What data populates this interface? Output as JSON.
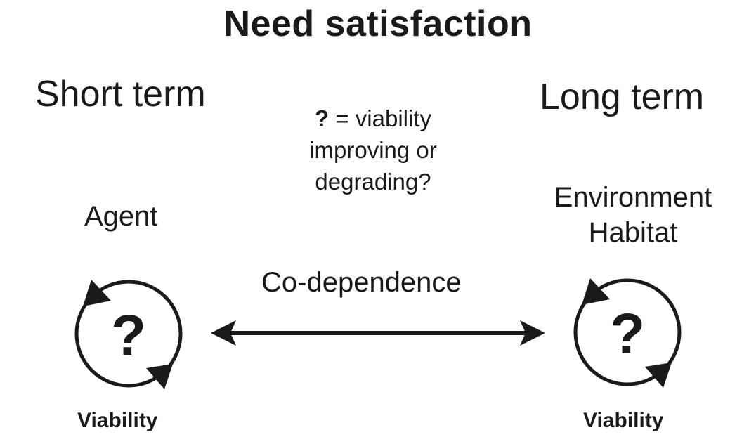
{
  "title": "Need satisfaction",
  "short_term_label": "Short term",
  "long_term_label": "Long term",
  "legend": {
    "symbol": "?",
    "text_line1": " = viability",
    "text_line2": "improving or",
    "text_line3": "degrading?"
  },
  "agent": {
    "label": "Agent",
    "symbol": "?",
    "caption": "Viability"
  },
  "environment": {
    "label_line1": "Environment",
    "label_line2": "Habitat",
    "symbol": "?",
    "caption": "Viability"
  },
  "relation_label": "Co-dependence",
  "icons": [
    "cycle-arrows-icon",
    "double-arrow-icon"
  ],
  "colors": {
    "ink": "#1a1a1a",
    "background": "#ffffff"
  }
}
